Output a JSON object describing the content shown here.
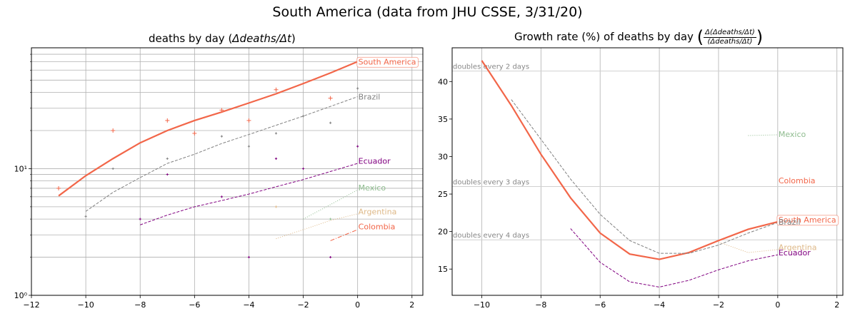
{
  "figure": {
    "suptitle": "South America (data from JHU CSSE, 3/31/20)"
  },
  "colors": {
    "South America": "#f26649",
    "Brazil": "#808080",
    "Ecuador": "#800080",
    "Mexico": "#8fbc8f",
    "Argentina": "#deb887",
    "Colombia": "#f26649"
  },
  "chart_data": [
    {
      "type": "line",
      "title_prefix": "deaths by day (",
      "title_math": "Δdeaths/Δt",
      "title_suffix": ")",
      "yscale": "log",
      "xlim": [
        -12,
        2.4
      ],
      "ylim": [
        1,
        90
      ],
      "xticks": [
        -12,
        -10,
        -8,
        -6,
        -4,
        -2,
        0,
        2
      ],
      "xtick_labels": [
        "−12",
        "−10",
        "−8",
        "−6",
        "−4",
        "−2",
        "0",
        "2"
      ],
      "yticks": [
        1,
        10
      ],
      "ytick_labels": [
        "10⁰",
        "10¹"
      ],
      "series": [
        {
          "name": "South America",
          "style": "solid",
          "width": 2.2,
          "x": [
            -11,
            -10,
            -9,
            -8,
            -7,
            -6,
            -5,
            -4,
            -3,
            -2,
            -1,
            0
          ],
          "y": [
            6.1,
            8.8,
            12,
            16,
            20,
            24,
            28,
            33,
            39,
            47,
            57,
            70
          ],
          "scatter_x": [
            -11,
            -9,
            -7,
            -6,
            -5,
            -4,
            -3,
            -1
          ],
          "scatter_y": [
            7,
            20,
            24,
            19,
            29,
            24,
            42,
            36
          ],
          "label": "South America",
          "label_boxed": true,
          "label_y": 70
        },
        {
          "name": "Brazil",
          "style": "dashed",
          "width": 1,
          "x": [
            -10,
            -9,
            -8,
            -7,
            -6,
            -5,
            -4,
            -3,
            -2,
            -1,
            0
          ],
          "y": [
            4.6,
            6.5,
            8.5,
            11,
            13,
            15.8,
            18.6,
            22,
            26,
            31,
            37
          ],
          "scatter_x": [
            -10,
            -9,
            -7,
            -5,
            -4,
            -3,
            -2,
            -1,
            0
          ],
          "scatter_y": [
            4.2,
            10,
            12,
            18,
            15,
            19,
            26,
            23,
            43
          ],
          "label": "Brazil",
          "label_boxed": false,
          "label_y": 37
        },
        {
          "name": "Ecuador",
          "style": "dashed",
          "width": 1,
          "x": [
            -8,
            -7,
            -6,
            -5,
            -4,
            -3,
            -2,
            -1,
            0
          ],
          "y": [
            3.6,
            4.3,
            5,
            5.6,
            6.3,
            7.2,
            8.2,
            9.5,
            11
          ],
          "scatter_x": [
            -8,
            -7,
            -5,
            -4,
            -3,
            -2,
            -1,
            0
          ],
          "scatter_y": [
            4,
            9,
            6,
            2,
            12,
            10,
            2,
            15
          ],
          "label": "Ecuador",
          "label_boxed": false,
          "label_y": 11.5
        },
        {
          "name": "Mexico",
          "style": "dotted",
          "width": 1,
          "x": [
            -2,
            -1,
            0
          ],
          "y": [
            4,
            5.2,
            6.8
          ],
          "scatter_x": [
            -1
          ],
          "scatter_y": [
            4
          ],
          "label": "Mexico",
          "label_boxed": false,
          "label_y": 7.1
        },
        {
          "name": "Argentina",
          "style": "dotted",
          "width": 1,
          "x": [
            -3,
            -2,
            -1,
            0
          ],
          "y": [
            2.8,
            3.3,
            3.9,
            4.4
          ],
          "scatter_x": [
            -3
          ],
          "scatter_y": [
            5
          ],
          "label": "Argentina",
          "label_boxed": false,
          "label_y": 4.6
        },
        {
          "name": "Colombia",
          "style": "dashdot",
          "width": 1,
          "x": [
            -1,
            0
          ],
          "y": [
            2.7,
            3.3
          ],
          "scatter_x": [],
          "scatter_y": [],
          "label": "Colombia",
          "label_boxed": false,
          "label_y": 3.5
        }
      ]
    },
    {
      "type": "line",
      "title_prefix": "Growth rate (%) of deaths by day ",
      "title_frac_num": "Δ(Δdeaths/Δt)",
      "title_frac_den": "(Δdeaths/Δt)",
      "yscale": "linear",
      "xlim": [
        -11,
        2.2
      ],
      "ylim": [
        11.5,
        44.5
      ],
      "xticks": [
        -10,
        -8,
        -6,
        -4,
        -2,
        0,
        2
      ],
      "xtick_labels": [
        "−10",
        "−8",
        "−6",
        "−4",
        "−2",
        "0",
        "2"
      ],
      "yticks": [
        15,
        20,
        25,
        30,
        35,
        40
      ],
      "ytick_labels": [
        "15",
        "20",
        "25",
        "30",
        "35",
        "40"
      ],
      "reference_lines": [
        {
          "y": 41.4,
          "label": "doubles every 2 days"
        },
        {
          "y": 26,
          "label": "doubles every 3 days"
        },
        {
          "y": 18.9,
          "label": "doubles every 4 days"
        }
      ],
      "series": [
        {
          "name": "South America",
          "style": "solid",
          "width": 2.2,
          "x": [
            -10,
            -9,
            -8,
            -7,
            -6,
            -5,
            -4,
            -3,
            -2,
            -1,
            0
          ],
          "y": [
            42.8,
            36.8,
            30.3,
            24.5,
            19.8,
            17,
            16.3,
            17.2,
            18.8,
            20.3,
            21.3
          ],
          "label": "South America",
          "label_boxed": true,
          "label_y": 21.6
        },
        {
          "name": "Brazil",
          "style": "dashed",
          "width": 1,
          "x": [
            -9,
            -8,
            -7,
            -6,
            -5,
            -4,
            -3,
            -2,
            -1,
            0
          ],
          "y": [
            37.6,
            32.3,
            27,
            22.3,
            18.8,
            17.1,
            17.1,
            18.2,
            19.8,
            21.2
          ],
          "label": "Brazil",
          "label_boxed": false,
          "label_y": 21.3
        },
        {
          "name": "Ecuador",
          "style": "dashed",
          "width": 1,
          "x": [
            -7,
            -6,
            -5,
            -4,
            -3,
            -2,
            -1,
            0
          ],
          "y": [
            20.4,
            15.9,
            13.3,
            12.6,
            13.5,
            14.9,
            16.1,
            16.9
          ],
          "label": "Ecuador",
          "label_boxed": false,
          "label_y": 17.2
        },
        {
          "name": "Mexico",
          "style": "dotted",
          "width": 1,
          "x": [
            -1,
            0
          ],
          "y": [
            32.8,
            32.9
          ],
          "label": "Mexico",
          "label_boxed": false,
          "label_y": 33
        },
        {
          "name": "Argentina",
          "style": "dotted",
          "width": 1,
          "x": [
            -2,
            -1,
            0
          ],
          "y": [
            18.6,
            17.2,
            17.6
          ],
          "label": "Argentina",
          "label_boxed": false,
          "label_y": 17.9
        },
        {
          "name": "Colombia",
          "style": "none",
          "width": 1,
          "x": [],
          "y": [],
          "label": "Colombia",
          "label_boxed": false,
          "label_y": 26.8
        }
      ]
    }
  ]
}
